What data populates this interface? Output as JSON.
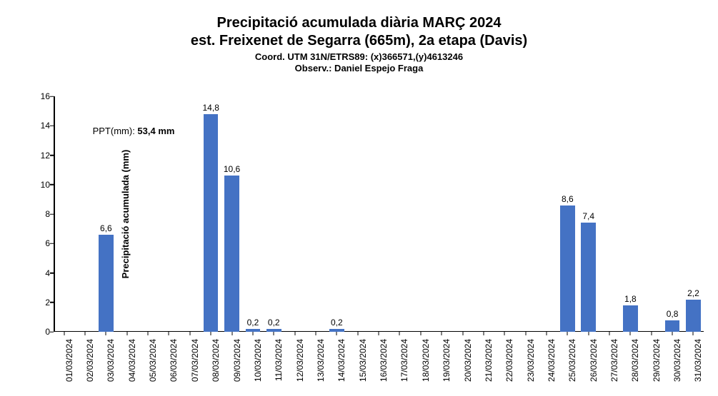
{
  "title_main": "Precipitació acumulada diària MARÇ 2024",
  "title_sub": "est. Freixenet de Segarra (665m), 2a etapa (Davis)",
  "title_coord": "Coord. UTM 31N/ETRS89: (x)366571,(y)4613246",
  "title_obs": "Observ.: Daniel Espejo Fraga",
  "y_axis_title": "Precipitació acumulada (mm)",
  "annotation_prefix": "PPT(mm): ",
  "annotation_value": "53,4 mm",
  "chart": {
    "type": "bar",
    "bar_color": "#4472c4",
    "background_color": "#ffffff",
    "axis_color": "#000000",
    "text_color": "#000000",
    "bar_width_ratio": 0.7,
    "ylim": [
      0,
      16
    ],
    "ytick_step": 2,
    "yticks": [
      0,
      2,
      4,
      6,
      8,
      10,
      12,
      14,
      16
    ],
    "title_fontsize": 20,
    "subtitle_fontsize": 13,
    "axis_label_fontsize": 13,
    "tick_fontsize": 12,
    "bar_label_fontsize": 12,
    "annotation_left_pct": 6,
    "annotation_y_value": 13.3,
    "categories": [
      "01/03/2024",
      "02/03/2024",
      "03/03/2024",
      "04/03/2024",
      "05/03/2024",
      "06/03/2024",
      "07/03/2024",
      "08/03/2024",
      "09/03/2024",
      "10/03/2024",
      "11/03/2024",
      "12/03/2024",
      "13/03/2024",
      "14/03/2024",
      "15/03/2024",
      "16/03/2024",
      "17/03/2024",
      "18/03/2024",
      "19/03/2024",
      "20/03/2024",
      "21/03/2024",
      "22/03/2024",
      "23/03/2024",
      "24/03/2024",
      "25/03/2024",
      "26/03/2024",
      "27/03/2024",
      "28/03/2024",
      "29/03/2024",
      "30/03/2024",
      "31/03/2024"
    ],
    "values": [
      0,
      0,
      6.6,
      0,
      0,
      0,
      0,
      14.8,
      10.6,
      0.2,
      0.2,
      0,
      0,
      0.2,
      0,
      0,
      0,
      0,
      0,
      0,
      0,
      0,
      0,
      0,
      8.6,
      7.4,
      0,
      1.8,
      0,
      0.8,
      2.2
    ],
    "value_labels": [
      "",
      "",
      "6,6",
      "",
      "",
      "",
      "",
      "14,8",
      "10,6",
      "0,2",
      "0,2",
      "",
      "",
      "0,2",
      "",
      "",
      "",
      "",
      "",
      "",
      "",
      "",
      "",
      "",
      "8,6",
      "7,4",
      "",
      "1,8",
      "",
      "0,8",
      "2,2"
    ]
  }
}
